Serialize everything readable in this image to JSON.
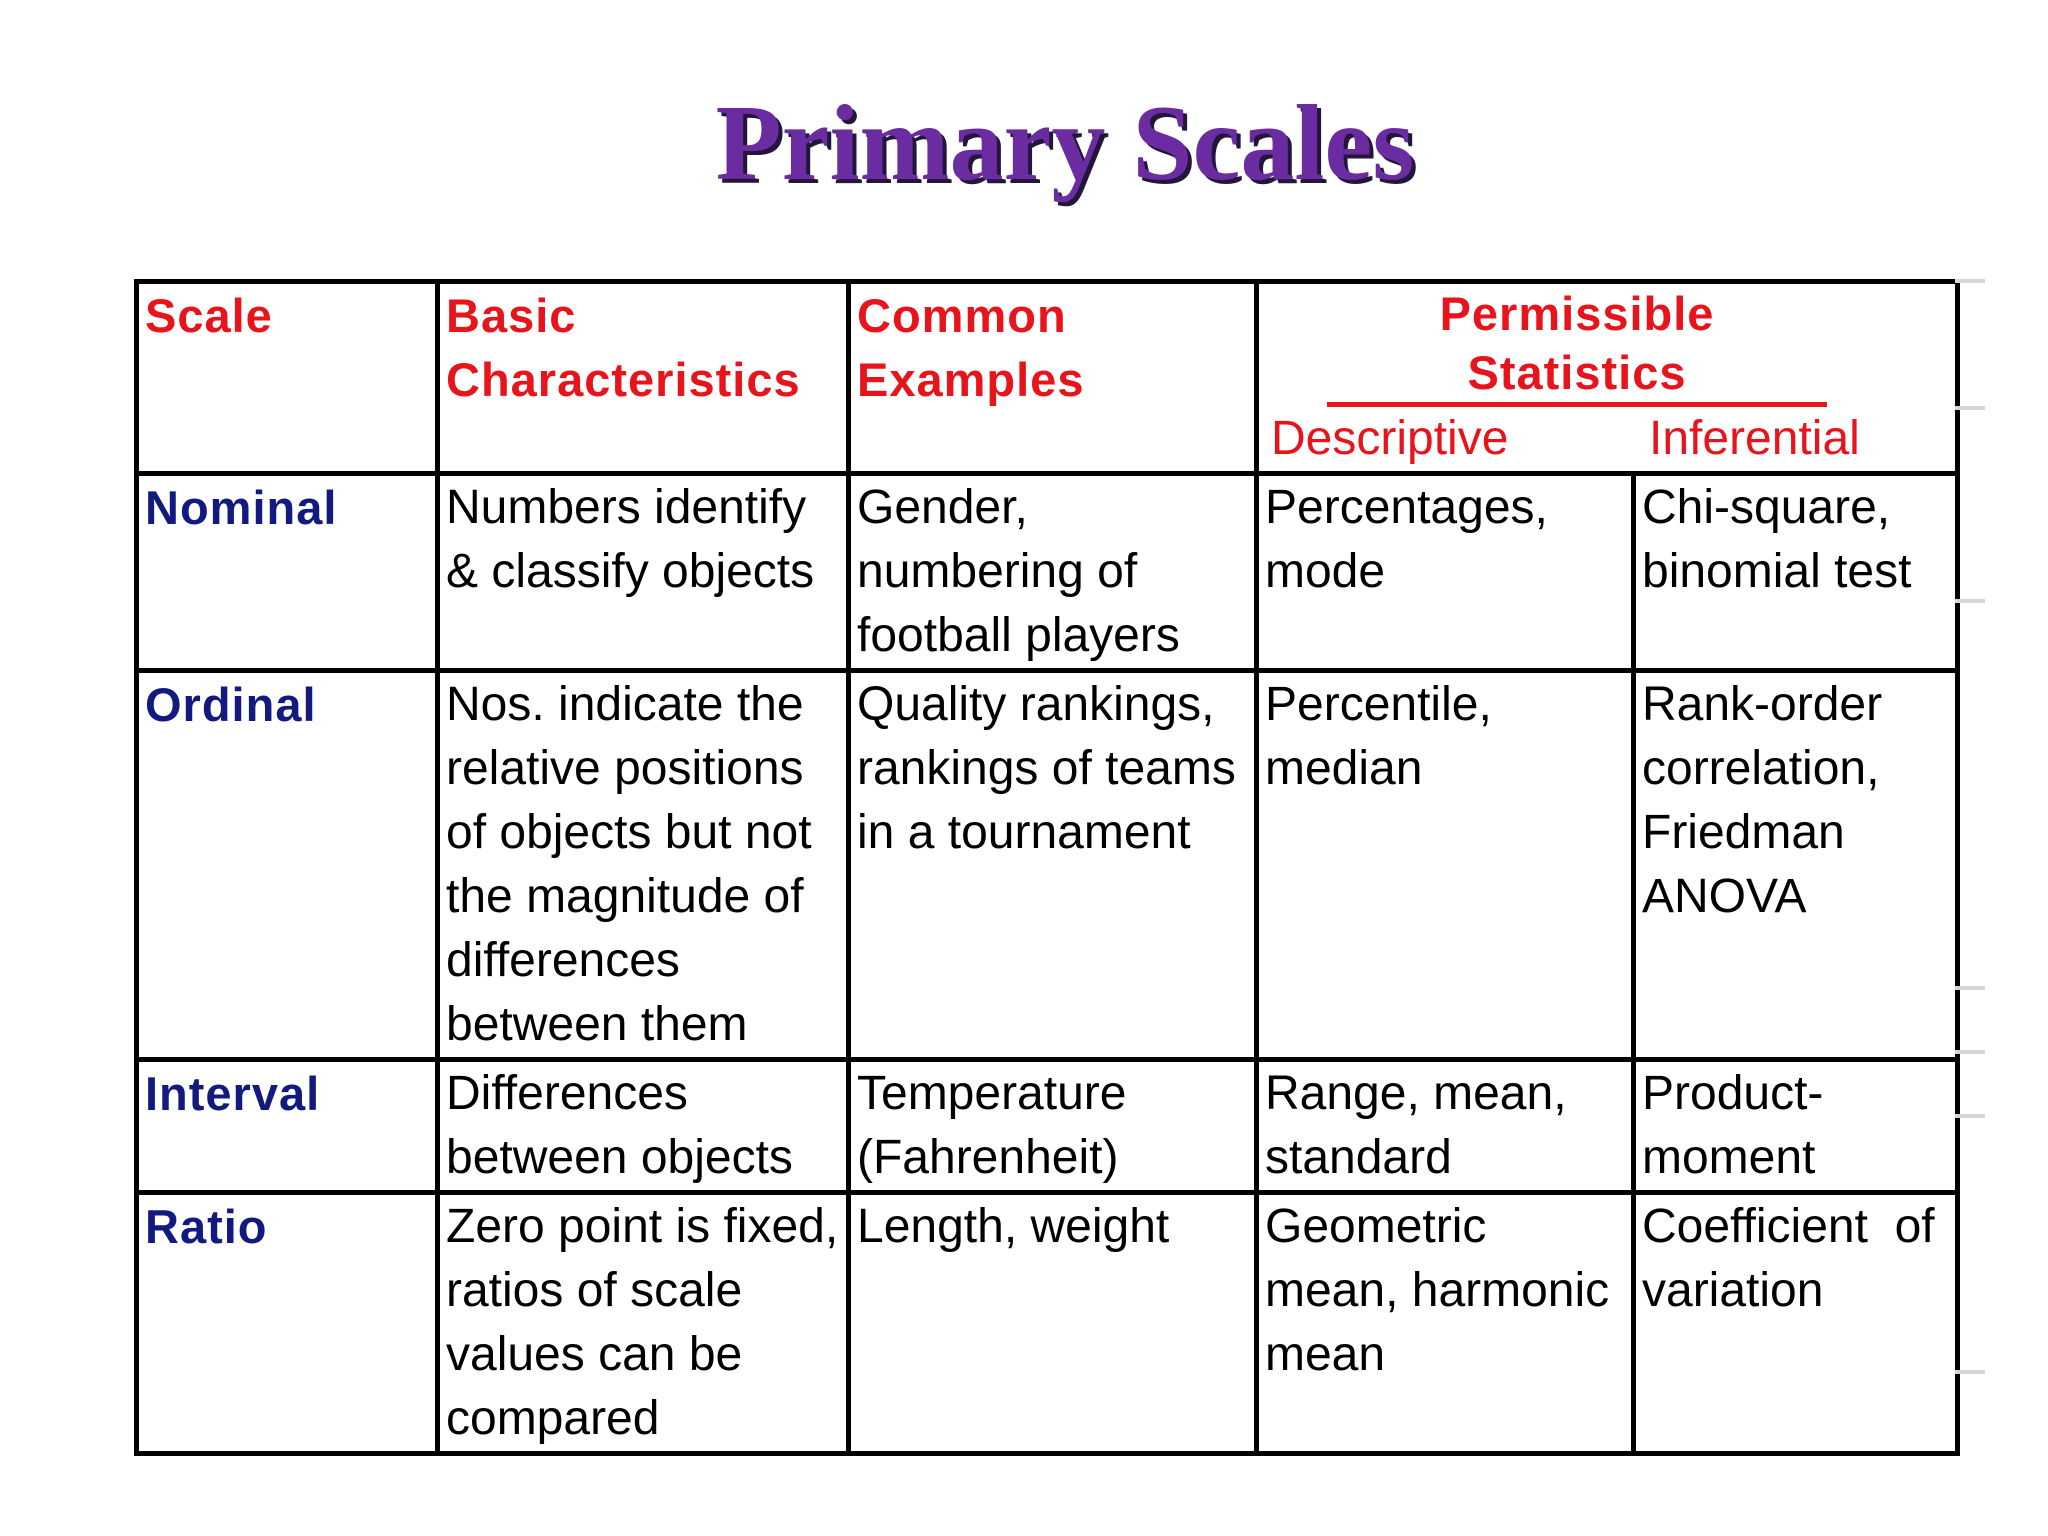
{
  "title": "Primary Scales",
  "headers": {
    "scale": "Scale",
    "basic": [
      "Basic",
      "Characteristics"
    ],
    "examples": [
      "Common",
      "Examples"
    ],
    "permissible": "Permissible Statistics",
    "descriptive": "Descriptive",
    "inferential": "Inferential"
  },
  "rows": [
    {
      "scale": "Nominal",
      "basic": [
        "Numbers identify",
        "& classify objects"
      ],
      "examples": [
        "Gender,",
        "numbering of",
        "football players"
      ],
      "descriptive": [
        "Percentages,",
        "mode"
      ],
      "inferential": [
        "Chi-square,",
        "binomial test"
      ]
    },
    {
      "scale": "Ordinal",
      "basic": [
        "Nos. indicate the",
        "relative positions",
        "of objects but not",
        "the magnitude of",
        "differences",
        "between them"
      ],
      "examples": [
        "Quality rankings,",
        "rankings of teams",
        "in a tournament"
      ],
      "descriptive": [
        "Percentile,",
        "median"
      ],
      "inferential": [
        "Rank-order",
        "correlation,",
        "Friedman",
        "ANOVA"
      ]
    },
    {
      "scale": "Interval",
      "basic": [
        "Differences",
        "between objects"
      ],
      "examples": [
        "Temperature",
        "(Fahrenheit)"
      ],
      "descriptive": [
        "Range, mean,",
        "standard"
      ],
      "inferential": [
        "Product-",
        "moment"
      ]
    },
    {
      "scale": "Ratio",
      "basic": [
        "Zero point is fixed,",
        "ratios of scale",
        "values can be",
        "compared"
      ],
      "examples": [
        "Length, weight"
      ],
      "descriptive": [
        "Geometric",
        "mean, harmonic",
        "mean"
      ],
      "inferential": [
        "Coefficient  of",
        "variation"
      ]
    }
  ]
}
